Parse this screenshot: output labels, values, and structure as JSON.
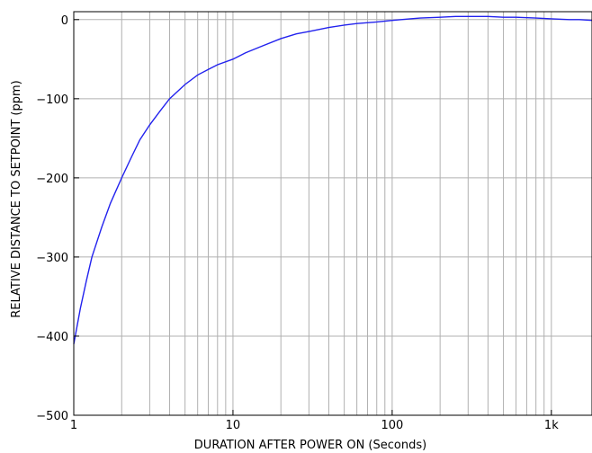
{
  "chart_data": {
    "type": "line",
    "xlabel": "DURATION AFTER POWER ON (Seconds)",
    "ylabel": "RELATIVE DISTANCE TO SETPOINT (ppm)",
    "x_scale": "log",
    "xlim": [
      1,
      1800
    ],
    "ylim": [
      -500,
      10
    ],
    "x_ticks": [
      {
        "value": 1,
        "label": "1"
      },
      {
        "value": 10,
        "label": "10"
      },
      {
        "value": 100,
        "label": "100"
      },
      {
        "value": 1000,
        "label": "1k"
      }
    ],
    "y_ticks": [
      {
        "value": 0,
        "label": "0"
      },
      {
        "value": -100,
        "label": "−100"
      },
      {
        "value": -200,
        "label": "−200"
      },
      {
        "value": -300,
        "label": "−300"
      },
      {
        "value": -400,
        "label": "−400"
      },
      {
        "value": -500,
        "label": "−500"
      }
    ],
    "grid": true,
    "series_color": "#2222ee",
    "series": [
      {
        "x": [
          1,
          1.1,
          1.2,
          1.3,
          1.5,
          1.7,
          2,
          2.3,
          2.6,
          3,
          3.5,
          4,
          5,
          6,
          7,
          8,
          10,
          12,
          15,
          20,
          25,
          30,
          40,
          50,
          60,
          80,
          100,
          130,
          150,
          200,
          250,
          300,
          400,
          500,
          600,
          800,
          1000,
          1300,
          1500,
          1800
        ],
        "y": [
          -410,
          -365,
          -330,
          -300,
          -262,
          -232,
          -200,
          -174,
          -152,
          -133,
          -115,
          -100,
          -82,
          -70,
          -63,
          -57,
          -50,
          -42,
          -34,
          -24,
          -18,
          -15,
          -10,
          -7,
          -5,
          -3,
          -1,
          1,
          2,
          3,
          4,
          4,
          4,
          3,
          3,
          2,
          1,
          0,
          0,
          -1
        ]
      }
    ]
  }
}
